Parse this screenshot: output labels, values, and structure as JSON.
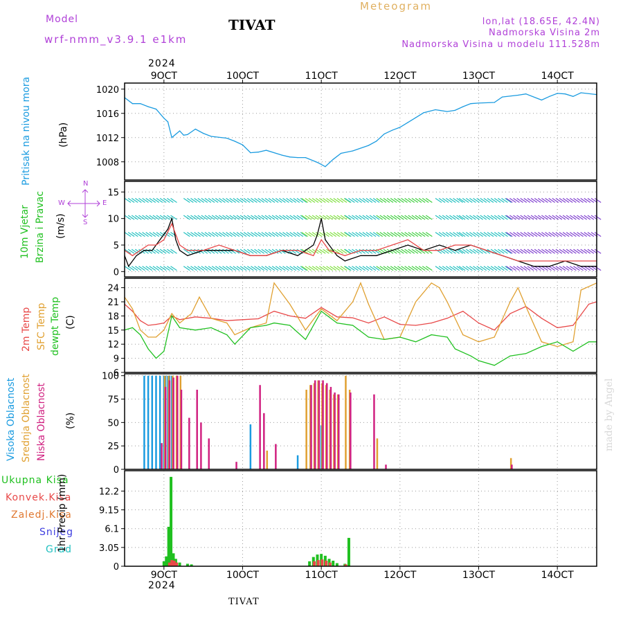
{
  "header": {
    "model_label": "Model",
    "model_name": "wrf-nmm_v3.9.1 e1km",
    "title": "TIVAT",
    "meteogram_label": "Meteogram",
    "lonlat": "lon,lat (18.65E, 42.4N)",
    "altitude": "Nadmorska Visina 2m",
    "model_altitude": "Nadmorska Visina u modelu 111.528m",
    "top_year": "2024",
    "bottom_year": "2024",
    "footer": "TIVAT",
    "watermark": "made by Angel"
  },
  "colors": {
    "pressure": "#1a9be0",
    "magenta": "#b040d8",
    "green": "#20c020",
    "red": "#e84848",
    "orange": "#e0a030",
    "cyan": "#22c0c0",
    "blue": "#4040e0",
    "pink": "#d02080",
    "grid": "#999999"
  },
  "x_axis": {
    "labels": [
      "9OCT",
      "10OCT",
      "11OCT",
      "12OCT",
      "13OCT",
      "14OCT"
    ],
    "days": [
      9,
      10,
      11,
      12,
      13,
      14
    ],
    "range": [
      8.5,
      14.5
    ]
  },
  "panel_labels": {
    "pressure_title": "Pritisak na nivou mora",
    "pressure_unit": "(hPa)",
    "wind_title1": "10m Vjetar",
    "wind_title2": "Brzina i Pravac",
    "wind_unit": "(m/s)",
    "compass_n": "N",
    "compass_w": "W",
    "compass_e": "E",
    "compass_s": "S",
    "temp_2m": "2m Temp",
    "temp_sfc": "SFC Temp",
    "temp_dew": "dewpt Temp",
    "temp_unit": "(C)",
    "cloud_high": "Visoka Oblacnost",
    "cloud_mid": "Srednja Oblacnost",
    "cloud_low": "Niska Oblacnost",
    "cloud_unit": "(%)",
    "precip_total": "Ukupna Kisa",
    "precip_conv": "Konvek.Kisa",
    "precip_frz": "Zaledj.Kisa",
    "precip_snow": "Snijeg",
    "precip_grad": "Grad",
    "precip_unit": "1hr Precip (mm)"
  },
  "chart_data": [
    {
      "type": "line",
      "name": "pressure",
      "ylim": [
        1005,
        1021
      ],
      "yticks": [
        1008,
        1012,
        1016,
        1020
      ],
      "series": [
        {
          "color": "#1a9be0",
          "x": [
            8.5,
            8.6,
            8.7,
            8.8,
            8.9,
            9.0,
            9.05,
            9.1,
            9.2,
            9.25,
            9.3,
            9.4,
            9.5,
            9.6,
            9.8,
            9.9,
            10.0,
            10.1,
            10.2,
            10.3,
            10.5,
            10.6,
            10.7,
            10.8,
            10.95,
            11.05,
            11.15,
            11.25,
            11.4,
            11.6,
            11.7,
            11.8,
            11.9,
            12.0,
            12.1,
            12.2,
            12.3,
            12.45,
            12.6,
            12.7,
            12.8,
            12.9,
            13.0,
            13.2,
            13.3,
            13.5,
            13.6,
            13.8,
            13.9,
            14.0,
            14.1,
            14.2,
            14.3,
            14.5
          ],
          "y": [
            1018.6,
            1017.6,
            1017.6,
            1017.1,
            1016.7,
            1015.2,
            1014.6,
            1012.0,
            1013.1,
            1012.4,
            1012.5,
            1013.4,
            1012.7,
            1012.2,
            1011.9,
            1011.4,
            1010.8,
            1009.5,
            1009.6,
            1009.9,
            1009.1,
            1008.8,
            1008.7,
            1008.7,
            1007.9,
            1007.2,
            1008.4,
            1009.4,
            1009.8,
            1010.7,
            1011.4,
            1012.6,
            1013.2,
            1013.7,
            1014.5,
            1015.3,
            1016.1,
            1016.6,
            1016.3,
            1016.5,
            1017.1,
            1017.6,
            1017.7,
            1017.8,
            1018.7,
            1019.0,
            1019.2,
            1018.2,
            1018.8,
            1019.3,
            1019.2,
            1018.8,
            1019.4,
            1019.1
          ]
        }
      ]
    },
    {
      "type": "line",
      "name": "wind speed",
      "ylim": [
        -1,
        17
      ],
      "yticks": [
        0,
        5,
        10,
        15
      ],
      "series": [
        {
          "color": "#000000",
          "x": [
            8.5,
            8.55,
            8.65,
            8.75,
            8.85,
            8.9,
            8.95,
            9.0,
            9.05,
            9.1,
            9.15,
            9.2,
            9.3,
            9.5,
            9.7,
            9.9,
            10.1,
            10.3,
            10.5,
            10.7,
            10.8,
            10.9,
            10.95,
            11.0,
            11.05,
            11.1,
            11.15,
            11.2,
            11.3,
            11.5,
            11.7,
            11.9,
            12.1,
            12.3,
            12.5,
            12.7,
            12.9,
            13.1,
            13.3,
            13.5,
            13.7,
            13.9,
            14.1,
            14.3,
            14.5
          ],
          "y": [
            3,
            1,
            3,
            4,
            4,
            5,
            6,
            7,
            8,
            10,
            6,
            4,
            3,
            4,
            4,
            4,
            3,
            3,
            4,
            3,
            4,
            5,
            7,
            10,
            6,
            5,
            4,
            3,
            2,
            3,
            3,
            4,
            5,
            4,
            5,
            4,
            5,
            4,
            3,
            2,
            1,
            1,
            2,
            1,
            1
          ]
        },
        {
          "color": "#e84848",
          "x": [
            8.5,
            8.6,
            8.7,
            8.8,
            8.9,
            9.0,
            9.1,
            9.2,
            9.3,
            9.5,
            9.7,
            9.9,
            10.1,
            10.3,
            10.5,
            10.7,
            10.9,
            11.0,
            11.1,
            11.3,
            11.5,
            11.7,
            11.9,
            12.1,
            12.3,
            12.5,
            12.7,
            12.9,
            13.1,
            13.3,
            13.5,
            13.7,
            13.9,
            14.1,
            14.3,
            14.5
          ],
          "y": [
            4,
            3,
            4,
            5,
            5,
            6,
            9,
            5,
            4,
            4,
            5,
            4,
            3,
            3,
            4,
            4,
            3,
            6,
            4,
            3,
            4,
            4,
            5,
            6,
            4,
            4,
            5,
            5,
            4,
            3,
            2,
            2,
            2,
            2,
            2,
            2
          ]
        }
      ]
    },
    {
      "type": "line",
      "name": "temperature",
      "ylim": [
        6,
        26
      ],
      "yticks": [
        6,
        9,
        12,
        15,
        18,
        21,
        24
      ],
      "series": [
        {
          "color": "#e84848",
          "x": [
            8.5,
            8.6,
            8.7,
            8.8,
            8.9,
            9.0,
            9.1,
            9.2,
            9.4,
            9.6,
            9.8,
            10.0,
            10.2,
            10.4,
            10.6,
            10.8,
            11.0,
            11.2,
            11.4,
            11.6,
            11.8,
            12.0,
            12.2,
            12.4,
            12.6,
            12.8,
            13.0,
            13.2,
            13.4,
            13.6,
            13.8,
            14.0,
            14.2,
            14.4,
            14.5
          ],
          "y": [
            20.5,
            19.0,
            17.0,
            16.0,
            16.2,
            16.5,
            18.0,
            17.2,
            17.8,
            17.5,
            17.0,
            17.2,
            17.4,
            19.0,
            18.0,
            17.5,
            19.8,
            17.8,
            17.6,
            16.5,
            17.8,
            16.2,
            16.0,
            16.5,
            17.5,
            19.0,
            16.5,
            15.0,
            18.5,
            20.0,
            17.5,
            15.5,
            16.0,
            20.5,
            21.0
          ]
        },
        {
          "color": "#e0a030",
          "x": [
            8.5,
            8.6,
            8.7,
            8.8,
            8.9,
            9.0,
            9.1,
            9.2,
            9.35,
            9.45,
            9.6,
            9.8,
            9.9,
            10.1,
            10.3,
            10.4,
            10.6,
            10.8,
            11.0,
            11.2,
            11.4,
            11.5,
            11.6,
            11.8,
            12.0,
            12.2,
            12.4,
            12.5,
            12.6,
            12.8,
            13.0,
            13.2,
            13.4,
            13.5,
            13.6,
            13.8,
            14.0,
            14.2,
            14.3,
            14.5
          ],
          "y": [
            22.0,
            19.5,
            15.0,
            13.5,
            13.5,
            15.0,
            18.5,
            16.5,
            18.5,
            22.0,
            17.5,
            16.5,
            14.0,
            15.5,
            16.5,
            25.0,
            20.5,
            15.0,
            19.5,
            17.0,
            21.0,
            25.0,
            20.5,
            13.0,
            13.5,
            21.0,
            25.0,
            24.0,
            21.0,
            14.0,
            12.5,
            13.5,
            21.0,
            24.0,
            20.0,
            12.5,
            11.5,
            12.5,
            23.5,
            25.0
          ]
        },
        {
          "color": "#20c020",
          "x": [
            8.5,
            8.6,
            8.7,
            8.8,
            8.9,
            9.0,
            9.1,
            9.2,
            9.4,
            9.6,
            9.8,
            9.9,
            10.1,
            10.3,
            10.4,
            10.6,
            10.8,
            11.0,
            11.2,
            11.4,
            11.6,
            11.8,
            12.0,
            12.2,
            12.4,
            12.6,
            12.7,
            12.9,
            13.0,
            13.2,
            13.4,
            13.6,
            13.8,
            14.0,
            14.2,
            14.4,
            14.5
          ],
          "y": [
            15.0,
            15.5,
            14.0,
            11.0,
            9.0,
            10.5,
            18.0,
            15.5,
            15.0,
            15.5,
            14.0,
            12.0,
            15.5,
            16.0,
            16.5,
            16.0,
            13.0,
            19.0,
            16.5,
            16.0,
            13.5,
            13.0,
            13.5,
            12.5,
            14.0,
            13.5,
            11.0,
            9.5,
            8.5,
            7.5,
            9.5,
            10.0,
            11.5,
            12.5,
            10.5,
            12.5,
            12.5
          ]
        }
      ]
    },
    {
      "type": "bar",
      "name": "cloud cover",
      "ylim": [
        0,
        102
      ],
      "yticks": [
        0,
        25,
        50,
        75,
        100
      ],
      "series": [
        {
          "name": "high",
          "color": "#1a9be0",
          "x": [
            8.75,
            8.8,
            8.85,
            8.9,
            8.95,
            9.0,
            9.02,
            9.05,
            9.07,
            9.1,
            10.1,
            10.7,
            11.0
          ],
          "values": [
            100,
            100,
            100,
            100,
            100,
            100,
            100,
            100,
            100,
            100,
            48,
            15,
            47
          ]
        },
        {
          "name": "mid",
          "color": "#e0a030",
          "x": [
            9.0,
            9.05,
            9.1,
            9.15,
            9.2,
            10.3,
            10.8,
            10.85,
            10.9,
            10.95,
            11.0,
            11.05,
            11.1,
            11.15,
            11.2,
            11.3,
            11.35,
            11.7,
            13.4
          ],
          "values": [
            100,
            100,
            100,
            100,
            100,
            20,
            85,
            90,
            92,
            95,
            92,
            90,
            85,
            80,
            80,
            100,
            85,
            33,
            12
          ]
        },
        {
          "name": "low",
          "color": "#d02080",
          "x": [
            8.95,
            9.0,
            9.05,
            9.1,
            9.15,
            9.2,
            9.3,
            9.4,
            9.45,
            9.55,
            9.9,
            10.2,
            10.25,
            10.4,
            10.85,
            10.9,
            10.95,
            11.0,
            11.05,
            11.1,
            11.15,
            11.2,
            11.35,
            11.65,
            11.8,
            13.4
          ],
          "values": [
            28,
            88,
            95,
            98,
            100,
            85,
            55,
            85,
            50,
            33,
            8,
            90,
            60,
            27,
            90,
            95,
            95,
            95,
            92,
            88,
            82,
            80,
            82,
            80,
            5,
            5
          ]
        }
      ]
    },
    {
      "type": "bar",
      "name": "precipitation",
      "ylim": [
        0,
        15.5
      ],
      "yticks": [
        0,
        3.05,
        6.1,
        9.15,
        12.2
      ],
      "series": [
        {
          "name": "total",
          "color": "#20c020",
          "x": [
            9.0,
            9.03,
            9.06,
            9.09,
            9.12,
            9.15,
            9.2,
            9.3,
            9.35,
            10.85,
            10.9,
            10.95,
            11.0,
            11.05,
            11.1,
            11.15,
            11.2,
            11.3,
            11.35
          ],
          "values": [
            0.8,
            1.6,
            6.4,
            14.5,
            2.1,
            1.2,
            0.6,
            0.4,
            0.3,
            0.8,
            1.5,
            1.9,
            2.0,
            1.7,
            1.2,
            0.9,
            0.5,
            0.4,
            4.6
          ]
        },
        {
          "name": "convective",
          "color": "#e84848",
          "x": [
            9.06,
            9.09,
            9.12,
            9.15,
            10.9,
            10.95,
            11.0,
            11.05,
            11.1,
            11.3
          ],
          "values": [
            0.6,
            1.0,
            0.9,
            0.6,
            0.8,
            1.0,
            1.1,
            0.9,
            0.6,
            0.3
          ]
        }
      ]
    }
  ]
}
